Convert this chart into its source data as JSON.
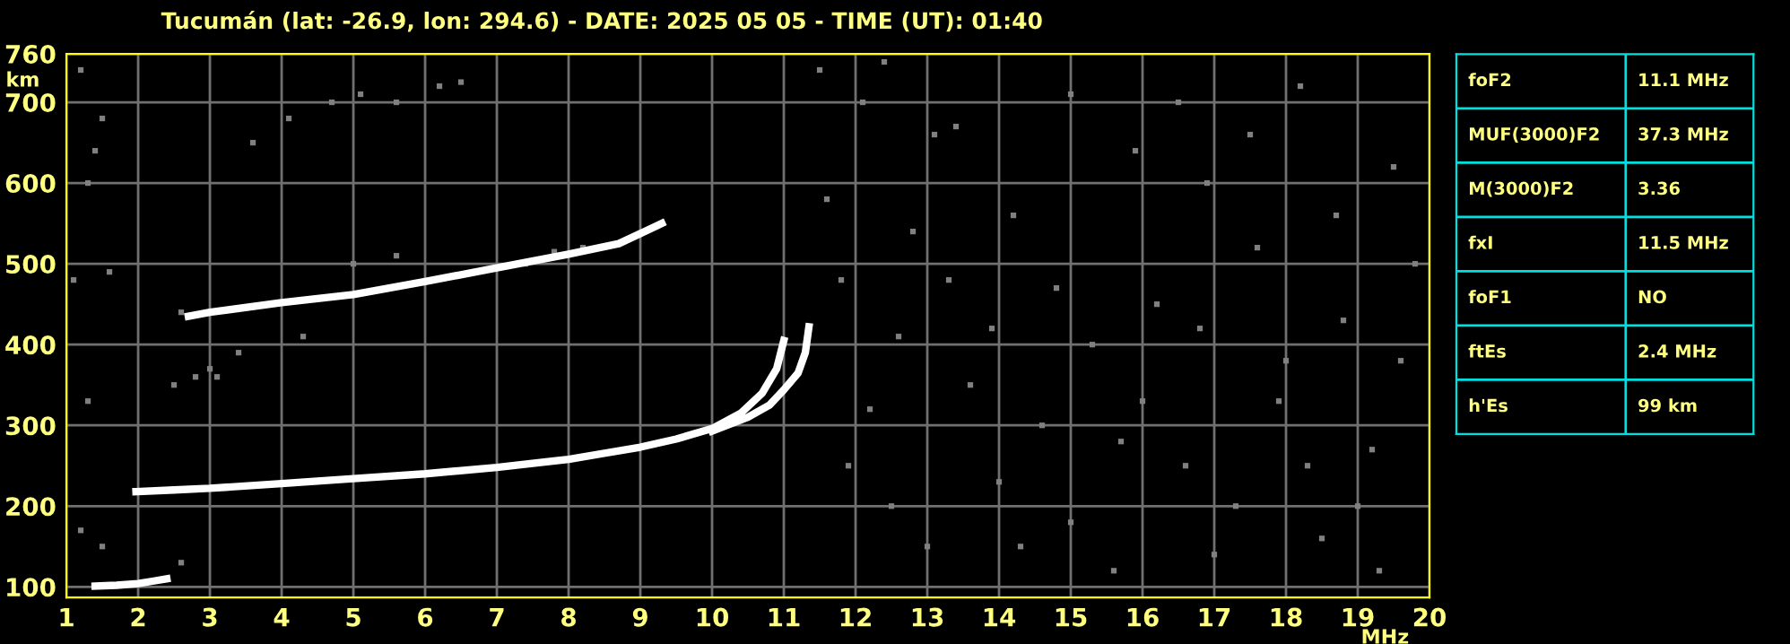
{
  "chart_data": [
    {
      "type": "line",
      "title": "Tucumán (lat: -26.9, lon: 294.6) - DATE: 2025 05 05 - TIME (UT): 01:40",
      "xlabel": "MHz",
      "ylabel": "km",
      "xlim": [
        1,
        20
      ],
      "ylim": [
        87,
        760
      ],
      "xticks": [
        1,
        2,
        3,
        4,
        5,
        6,
        7,
        8,
        9,
        10,
        11,
        12,
        13,
        14,
        15,
        16,
        17,
        18,
        19,
        20
      ],
      "yticks": [
        100,
        200,
        300,
        400,
        500,
        600,
        700,
        760
      ],
      "grid": true,
      "marker": "none",
      "line_style": "solid",
      "series": [
        {
          "type": "line",
          "color": "#ffffff",
          "x": [
            1.97,
            2.5,
            3,
            4,
            5,
            6,
            7,
            8,
            9,
            9.5,
            10,
            10.4,
            10.7,
            10.9,
            11.0
          ],
          "values": [
            218,
            220,
            222,
            228,
            234,
            240,
            248,
            258,
            273,
            283,
            296,
            315,
            340,
            370,
            405
          ]
        },
        {
          "type": "line",
          "color": "#ffffff",
          "x": [
            10.0,
            10.5,
            10.8,
            11.0,
            11.2,
            11.3,
            11.35
          ],
          "values": [
            293,
            310,
            325,
            344,
            365,
            390,
            422
          ]
        },
        {
          "type": "line",
          "color": "#ffffff",
          "x": [
            1.4,
            1.7,
            2.0,
            2.2,
            2.4
          ],
          "values": [
            101,
            102,
            104,
            107,
            110
          ]
        },
        {
          "type": "line",
          "color": "#ffffff",
          "x": [
            2.7,
            3,
            4,
            5,
            6,
            7,
            8,
            8.7,
            9.3
          ],
          "values": [
            435,
            440,
            452,
            462,
            478,
            495,
            512,
            525,
            550
          ]
        },
        {
          "type": "scatter",
          "color": "#808080",
          "marker": "square",
          "x": [
            1.2,
            1.5,
            1.3,
            1.4,
            1.1,
            1.6,
            1.3,
            1.2,
            1.5,
            2.6,
            2.5,
            2.8,
            3.1,
            3.4,
            3.6,
            4.1,
            4.7,
            5.1,
            5.6,
            6.2,
            6.5,
            2.6,
            3,
            4.3,
            5,
            5.6,
            7.4,
            7.8,
            8.2,
            11.5,
            11.6,
            11.8,
            12.1,
            12.4,
            12.8,
            13.1,
            13.4,
            13.3,
            13.9,
            14.2,
            14.6,
            15.0,
            15.3,
            15.6,
            15.9,
            16.2,
            16.6,
            16.9,
            17.3,
            17.6,
            17.9,
            18.2,
            18.5,
            18.8,
            19.2,
            19.5,
            19.8,
            12.5,
            13.0,
            14.0,
            15.0,
            16.0,
            17.0,
            18.0,
            19.0,
            12.2,
            13.6,
            14.8,
            16.5,
            17.5,
            18.7,
            19.6,
            11.9,
            12.6,
            14.3,
            15.7,
            16.8,
            18.3,
            19.3
          ],
          "values": [
            740,
            680,
            600,
            640,
            480,
            490,
            330,
            170,
            150,
            440,
            350,
            360,
            360,
            390,
            650,
            680,
            700,
            710,
            700,
            720,
            725,
            130,
            370,
            410,
            500,
            510,
            500,
            515,
            520,
            740,
            580,
            480,
            700,
            750,
            540,
            660,
            670,
            480,
            420,
            560,
            300,
            710,
            400,
            120,
            640,
            450,
            250,
            600,
            200,
            520,
            330,
            720,
            160,
            430,
            270,
            620,
            500,
            200,
            150,
            230,
            180,
            330,
            140,
            380,
            200,
            320,
            350,
            470,
            700,
            660,
            560,
            380,
            250,
            410,
            150,
            280,
            420,
            250,
            120
          ]
        }
      ]
    },
    {
      "type": "other",
      "annotations": [
        "foF2",
        "11.1 MHz",
        "MUF(3000)F2",
        "37.3 MHz",
        "M(3000)F2",
        "3.36",
        "fxI",
        "11.5 MHz",
        "foF1",
        "NO",
        "ftEs",
        "2.4 MHz",
        "h'Es",
        "99 km"
      ]
    }
  ]
}
